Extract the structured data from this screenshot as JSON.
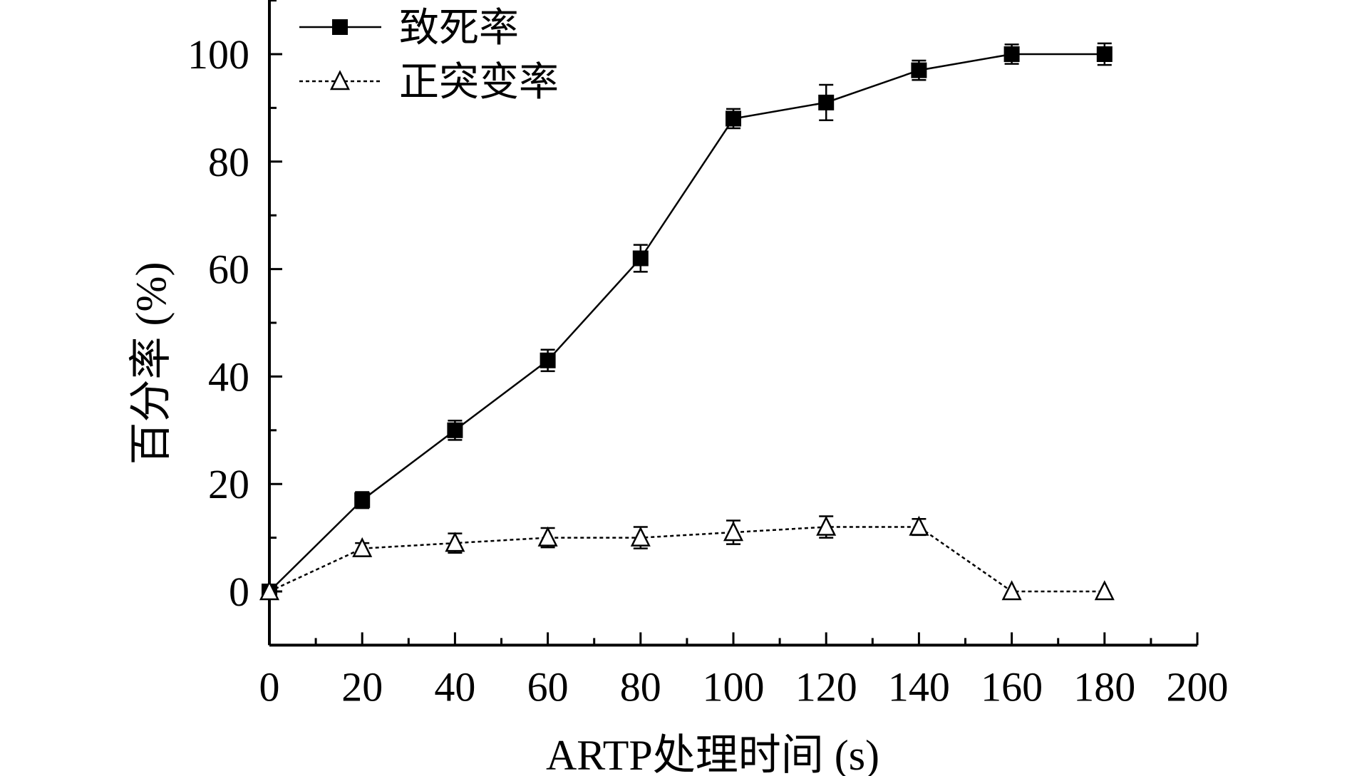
{
  "chart_data": {
    "type": "line",
    "xlabel": "ARTP处理时间 (s)",
    "ylabel": "百分率 (%)",
    "xlim": [
      0,
      200
    ],
    "ylim": [
      -10,
      110
    ],
    "xticks": [
      0,
      20,
      40,
      60,
      80,
      100,
      120,
      140,
      160,
      180,
      200
    ],
    "yticks": [
      0,
      20,
      40,
      60,
      80,
      100
    ],
    "legend_position": "top-left",
    "grid": false,
    "series": [
      {
        "name": "致死率",
        "marker": "filled-square",
        "line_style": "solid",
        "color": "#000000",
        "x": [
          0,
          20,
          40,
          60,
          80,
          100,
          120,
          140,
          160,
          180
        ],
        "y": [
          0,
          17,
          30,
          43,
          62,
          88,
          91,
          97,
          100,
          100
        ],
        "error": [
          0,
          1.5,
          1.8,
          2.0,
          2.5,
          1.8,
          3.3,
          1.8,
          1.8,
          2.0
        ]
      },
      {
        "name": "正突变率",
        "marker": "open-triangle",
        "line_style": "dotted",
        "color": "#000000",
        "x": [
          0,
          20,
          40,
          60,
          80,
          100,
          120,
          140,
          160,
          180
        ],
        "y": [
          0,
          8,
          9,
          10,
          10,
          11,
          12,
          12,
          0,
          0
        ],
        "error": [
          0,
          1.0,
          1.8,
          1.8,
          2.0,
          2.2,
          2.0,
          1.5,
          0,
          0
        ]
      }
    ]
  }
}
